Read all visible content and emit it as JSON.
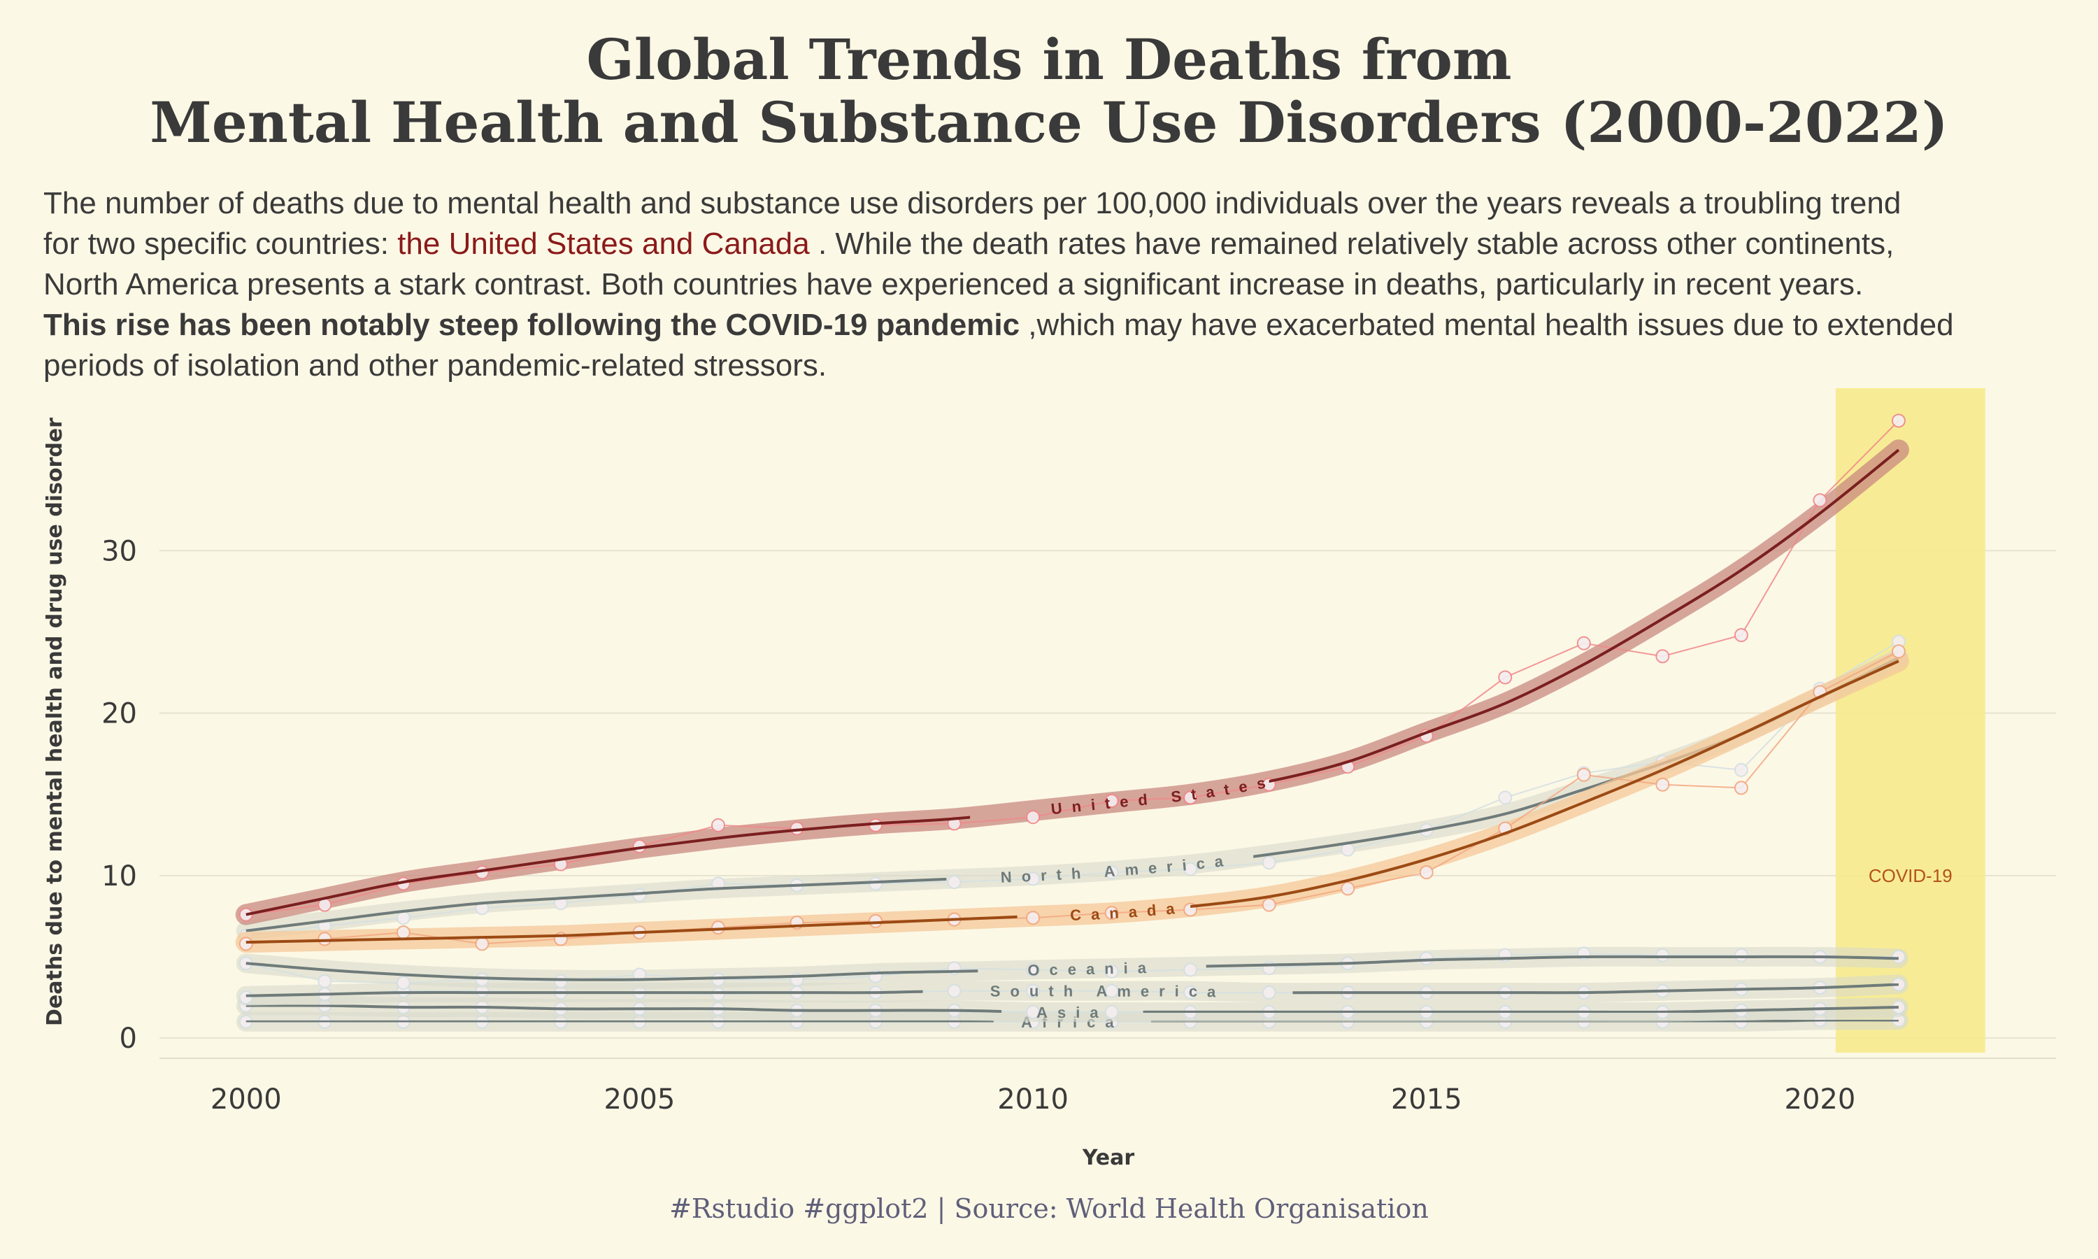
{
  "title_lines": [
    "Global Trends in Deaths from",
    "Mental Health and Substance Use Disorders (2000-2022)"
  ],
  "subtitle": {
    "line1": "The number of deaths due to mental health and substance use disorders per 100,000 individuals over the years reveals a troubling trend",
    "line2_pre": "for two specific countries: ",
    "line2_highlight": "the United States and Canada",
    "line2_post": " . While the death rates have remained relatively stable across other continents,",
    "line3": "North America presents a stark contrast. Both countries have experienced a significant increase in deaths, particularly in recent years.",
    "line4_bold": "This rise has been notably steep following the COVID-19 pandemic",
    "line4_post": " ,which may have exacerbated mental health issues due to extended",
    "line5": "periods of isolation and other pandemic-related stressors."
  },
  "caption": "#Rstudio #ggplot2 | Source: World Health Organisation",
  "chart_data": {
    "type": "line",
    "xlabel": "Year",
    "ylabel": "Deaths due to mental health and drug use disorder",
    "xlim": [
      1998.9,
      2023.0
    ],
    "ylim": [
      -0.9,
      40.0
    ],
    "x_ticks": [
      2000,
      2005,
      2010,
      2015,
      2020
    ],
    "y_ticks": [
      0,
      10,
      20,
      30
    ],
    "grid": "horizontal",
    "covid_band": {
      "x": [
        2020.2,
        2022.1
      ],
      "label": "COVID-19",
      "color": "#f6ea8c",
      "label_color": "#b5531a"
    },
    "x": [
      2000,
      2001,
      2002,
      2003,
      2004,
      2005,
      2006,
      2007,
      2008,
      2009,
      2010,
      2011,
      2012,
      2013,
      2014,
      2015,
      2016,
      2017,
      2018,
      2019,
      2020,
      2021
    ],
    "series": [
      {
        "name": "United States",
        "color": "#7a1f1f",
        "band_color": "#c98a80",
        "point_color": "#f0888a",
        "values": [
          7.6,
          8.2,
          9.5,
          10.2,
          10.7,
          11.8,
          13.1,
          12.9,
          13.1,
          13.2,
          13.6,
          14.6,
          14.8,
          15.6,
          16.7,
          18.6,
          22.2,
          24.3,
          23.5,
          24.8,
          33.1,
          38.0
        ],
        "trend": [
          7.6,
          8.6,
          9.6,
          10.3,
          11.0,
          11.7,
          12.3,
          12.8,
          13.2,
          13.5,
          14.0,
          14.5,
          15.0,
          15.8,
          17.0,
          18.8,
          20.6,
          23.0,
          25.8,
          28.8,
          32.3,
          36.2
        ]
      },
      {
        "name": "North America",
        "color": "#6f7b7a",
        "band_color": "#d9dacb",
        "point_color": "#d4dfe2",
        "values": [
          6.3,
          6.9,
          7.4,
          8.0,
          8.3,
          8.8,
          9.5,
          9.4,
          9.5,
          9.6,
          9.8,
          10.2,
          10.4,
          10.8,
          11.6,
          12.8,
          14.8,
          16.3,
          17.0,
          16.5,
          21.5,
          24.4
        ],
        "trend": [
          6.6,
          7.2,
          7.8,
          8.3,
          8.6,
          8.9,
          9.2,
          9.4,
          9.6,
          9.8,
          10.0,
          10.3,
          10.7,
          11.3,
          12.0,
          12.8,
          13.8,
          15.3,
          16.9,
          18.7,
          21.0,
          23.4
        ]
      },
      {
        "name": "Canada",
        "color": "#9c4a14",
        "band_color": "#f5c898",
        "point_color": "#f2a780",
        "values": [
          5.8,
          6.1,
          6.5,
          5.8,
          6.1,
          6.5,
          6.8,
          7.1,
          7.2,
          7.3,
          7.4,
          7.7,
          7.9,
          8.2,
          9.2,
          10.2,
          12.9,
          16.2,
          15.6,
          15.4,
          21.3,
          23.8
        ],
        "trend": [
          5.9,
          6.0,
          6.1,
          6.2,
          6.3,
          6.5,
          6.7,
          6.9,
          7.1,
          7.3,
          7.5,
          7.7,
          8.1,
          8.7,
          9.7,
          11.0,
          12.6,
          14.5,
          16.5,
          18.7,
          21.0,
          23.2
        ]
      },
      {
        "name": "Oceania",
        "color": "#6f7b7a",
        "band_color": "#d9dacb",
        "point_color": "#d4dfe2",
        "values": [
          4.6,
          3.5,
          3.4,
          3.6,
          3.5,
          3.9,
          3.6,
          3.6,
          3.8,
          4.3,
          4.2,
          4.1,
          4.2,
          4.3,
          4.6,
          4.9,
          5.1,
          5.2,
          5.1,
          5.1,
          5.0,
          5.0
        ],
        "trend": [
          4.6,
          4.2,
          3.9,
          3.7,
          3.6,
          3.6,
          3.7,
          3.8,
          4.0,
          4.1,
          4.2,
          4.3,
          4.4,
          4.5,
          4.6,
          4.8,
          4.9,
          5.0,
          5.0,
          5.0,
          5.0,
          4.9
        ]
      },
      {
        "name": "South America",
        "color": "#6f7b7a",
        "band_color": "#d9dacb",
        "point_color": "#d4dfe2",
        "values": [
          2.5,
          2.7,
          2.9,
          2.9,
          2.8,
          2.8,
          2.7,
          2.8,
          2.8,
          2.9,
          2.9,
          2.9,
          2.8,
          2.8,
          2.8,
          2.8,
          2.8,
          2.8,
          2.9,
          3.0,
          3.1,
          3.3
        ],
        "trend": [
          2.6,
          2.7,
          2.8,
          2.8,
          2.8,
          2.8,
          2.8,
          2.8,
          2.8,
          2.9,
          2.9,
          2.9,
          2.9,
          2.8,
          2.8,
          2.8,
          2.8,
          2.8,
          2.9,
          3.0,
          3.1,
          3.3
        ]
      },
      {
        "name": "Asia",
        "color": "#6f7b7a",
        "band_color": "#d9dacb",
        "point_color": "#d4dfe2",
        "values": [
          2.0,
          2.0,
          1.9,
          1.9,
          1.8,
          1.8,
          1.8,
          1.7,
          1.7,
          1.7,
          1.6,
          1.6,
          1.6,
          1.6,
          1.6,
          1.6,
          1.6,
          1.6,
          1.6,
          1.7,
          1.8,
          1.9
        ],
        "trend": [
          2.0,
          2.0,
          1.9,
          1.9,
          1.8,
          1.8,
          1.8,
          1.7,
          1.7,
          1.7,
          1.6,
          1.6,
          1.6,
          1.6,
          1.6,
          1.6,
          1.6,
          1.6,
          1.6,
          1.7,
          1.8,
          1.9
        ]
      },
      {
        "name": "Africa",
        "color": "#6f7b7a",
        "band_color": "#d9dacb",
        "point_color": "#d4dfe2",
        "values": [
          1.0,
          1.0,
          1.0,
          1.0,
          1.0,
          1.0,
          1.0,
          1.0,
          1.0,
          1.0,
          1.0,
          1.0,
          1.0,
          1.0,
          1.0,
          1.0,
          1.0,
          1.0,
          1.0,
          1.0,
          1.1,
          1.1
        ],
        "trend": [
          1.0,
          1.0,
          1.0,
          1.0,
          1.0,
          1.0,
          1.0,
          1.0,
          1.0,
          1.0,
          1.0,
          1.0,
          1.0,
          1.0,
          1.0,
          1.0,
          1.0,
          1.0,
          1.0,
          1.0,
          1.1,
          1.1
        ]
      }
    ]
  }
}
